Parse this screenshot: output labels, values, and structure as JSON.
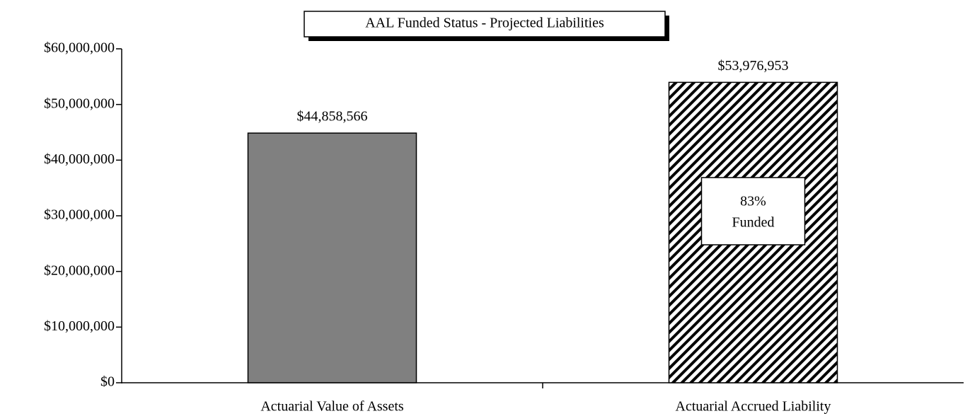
{
  "chart_data": {
    "type": "bar",
    "title": "AAL Funded Status - Projected Liabilities",
    "categories": [
      "Actuarial Value of Assets",
      "Actuarial Accrued Liability"
    ],
    "values": [
      44858566,
      53976953
    ],
    "value_labels": [
      "$44,858,566",
      "$53,976,953"
    ],
    "colors": [
      "#808080",
      "#000000"
    ],
    "fills": [
      "solid",
      "hatch"
    ],
    "annotation": [
      "83%",
      "Funded"
    ],
    "ylim": [
      0,
      60000000
    ],
    "yticks": [
      {
        "value": 0,
        "label": "$0"
      },
      {
        "value": 10000000,
        "label": "$10,000,000"
      },
      {
        "value": 20000000,
        "label": "$20,000,000"
      },
      {
        "value": 30000000,
        "label": "$30,000,000"
      },
      {
        "value": 40000000,
        "label": "$40,000,000"
      },
      {
        "value": 50000000,
        "label": "$50,000,000"
      },
      {
        "value": 60000000,
        "label": "$60,000,000"
      }
    ],
    "grid": false
  }
}
